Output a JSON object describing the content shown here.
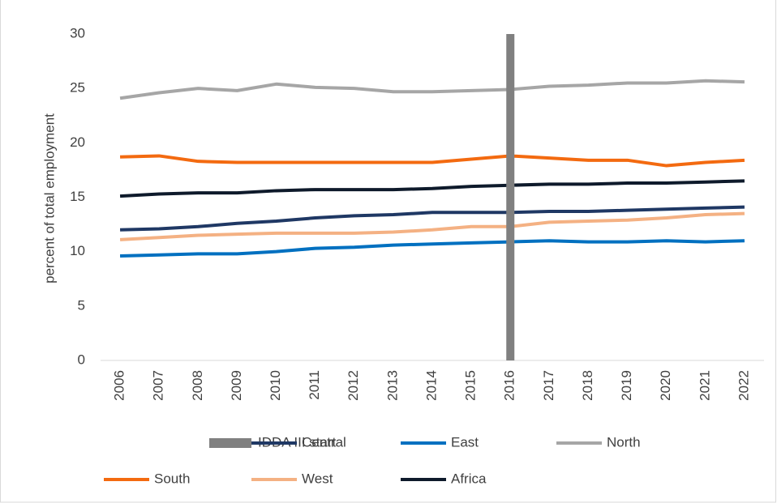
{
  "chart_data": {
    "type": "line",
    "ylabel": "percent of total employment",
    "categories": [
      "2006",
      "2007",
      "2008",
      "2009",
      "2010",
      "2011",
      "2012",
      "2013",
      "2014",
      "2015",
      "2016",
      "2017",
      "2018",
      "2019",
      "2020",
      "2021",
      "2022"
    ],
    "ylim": [
      0,
      30
    ],
    "yticks": [
      0,
      5,
      10,
      15,
      20,
      25,
      30
    ],
    "grid": false,
    "series": [
      {
        "name": "IDDA III start",
        "type": "bar",
        "color": "#808080",
        "values": [
          null,
          null,
          null,
          null,
          null,
          null,
          null,
          null,
          null,
          null,
          30,
          null,
          null,
          null,
          null,
          null,
          null
        ]
      },
      {
        "name": "Central",
        "color": "#1f3864",
        "values": [
          12.0,
          12.1,
          12.3,
          12.6,
          12.8,
          13.1,
          13.3,
          13.4,
          13.6,
          13.6,
          13.6,
          13.7,
          13.7,
          13.8,
          13.9,
          14.0,
          14.1
        ]
      },
      {
        "name": "East",
        "color": "#0070c0",
        "values": [
          9.6,
          9.7,
          9.8,
          9.8,
          10.0,
          10.3,
          10.4,
          10.6,
          10.7,
          10.8,
          10.9,
          11.0,
          10.9,
          10.9,
          11.0,
          10.9,
          11.0
        ]
      },
      {
        "name": "North",
        "color": "#a6a6a6",
        "values": [
          24.1,
          24.6,
          25.0,
          24.8,
          25.4,
          25.1,
          25.0,
          24.7,
          24.7,
          24.8,
          24.9,
          25.2,
          25.3,
          25.5,
          25.5,
          25.7,
          25.6
        ]
      },
      {
        "name": "South",
        "color": "#f36a10",
        "values": [
          18.7,
          18.8,
          18.3,
          18.2,
          18.2,
          18.2,
          18.2,
          18.2,
          18.2,
          18.5,
          18.8,
          18.6,
          18.4,
          18.4,
          17.9,
          18.2,
          18.4
        ]
      },
      {
        "name": "West",
        "color": "#f4b183",
        "values": [
          11.1,
          11.3,
          11.5,
          11.6,
          11.7,
          11.7,
          11.7,
          11.8,
          12.0,
          12.3,
          12.3,
          12.7,
          12.8,
          12.9,
          13.1,
          13.4,
          13.5
        ]
      },
      {
        "name": "Africa",
        "color": "#0e1a2b",
        "values": [
          15.1,
          15.3,
          15.4,
          15.4,
          15.6,
          15.7,
          15.7,
          15.7,
          15.8,
          16.0,
          16.1,
          16.2,
          16.2,
          16.3,
          16.3,
          16.4,
          16.5
        ]
      }
    ]
  }
}
